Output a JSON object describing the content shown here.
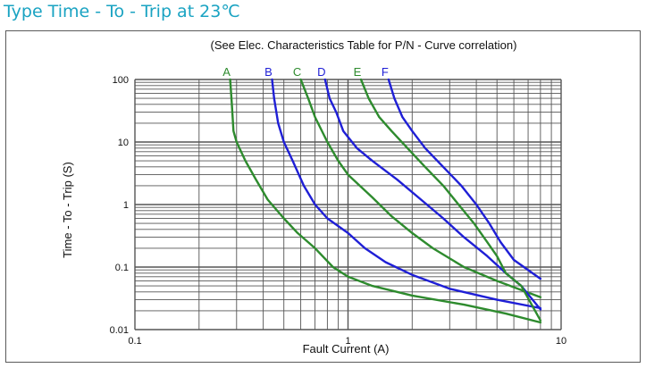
{
  "title": "Type Time - To - Trip at 23℃",
  "chart_data": {
    "type": "line",
    "subtitle": "(See Elec. Characteristics Table for P/N - Curve correlation)",
    "xlabel": "Fault Current (A)",
    "ylabel": "Time - To - Trip (S)",
    "xscale": "log",
    "yscale": "log",
    "xlim": [
      0.1,
      10
    ],
    "ylim": [
      0.01,
      100
    ],
    "grid": true,
    "xticks": [
      0.1,
      1,
      10
    ],
    "xtick_labels": [
      "0.1",
      "1",
      "10"
    ],
    "yticks": [
      0.01,
      0.1,
      1,
      10,
      100
    ],
    "ytick_labels": [
      "0.01",
      "0.1",
      "1",
      "10",
      "100"
    ],
    "colors": {
      "green": "#2e8b2e",
      "blue": "#1f1fd6",
      "grid": "#555555"
    },
    "series": [
      {
        "name": "A",
        "color": "#2e8b2e",
        "points": [
          [
            0.28,
            100
          ],
          [
            0.285,
            40
          ],
          [
            0.29,
            15
          ],
          [
            0.3,
            10
          ],
          [
            0.33,
            5
          ],
          [
            0.37,
            2.5
          ],
          [
            0.42,
            1.2
          ],
          [
            0.5,
            0.6
          ],
          [
            0.58,
            0.35
          ],
          [
            0.7,
            0.2
          ],
          [
            0.85,
            0.1
          ],
          [
            1.0,
            0.07
          ],
          [
            1.3,
            0.05
          ],
          [
            2,
            0.035
          ],
          [
            3.5,
            0.025
          ],
          [
            5.5,
            0.018
          ],
          [
            8,
            0.013
          ]
        ]
      },
      {
        "name": "B",
        "color": "#1f1fd6",
        "points": [
          [
            0.44,
            100
          ],
          [
            0.45,
            50
          ],
          [
            0.47,
            20
          ],
          [
            0.5,
            10
          ],
          [
            0.55,
            5
          ],
          [
            0.62,
            2
          ],
          [
            0.7,
            1
          ],
          [
            0.8,
            0.6
          ],
          [
            1.0,
            0.35
          ],
          [
            1.2,
            0.2
          ],
          [
            1.5,
            0.12
          ],
          [
            2,
            0.075
          ],
          [
            3,
            0.045
          ],
          [
            5,
            0.03
          ],
          [
            8,
            0.022
          ]
        ]
      },
      {
        "name": "C",
        "color": "#2e8b2e",
        "points": [
          [
            0.6,
            100
          ],
          [
            0.65,
            50
          ],
          [
            0.7,
            25
          ],
          [
            0.8,
            10
          ],
          [
            0.9,
            5
          ],
          [
            1.0,
            3
          ],
          [
            1.3,
            1.3
          ],
          [
            1.6,
            0.65
          ],
          [
            2,
            0.35
          ],
          [
            2.5,
            0.2
          ],
          [
            3.5,
            0.1
          ],
          [
            5,
            0.06
          ],
          [
            8,
            0.033
          ]
        ]
      },
      {
        "name": "D",
        "color": "#1f1fd6",
        "points": [
          [
            0.78,
            100
          ],
          [
            0.82,
            50
          ],
          [
            0.88,
            30
          ],
          [
            0.95,
            15
          ],
          [
            1.1,
            8
          ],
          [
            1.3,
            5
          ],
          [
            1.7,
            2.5
          ],
          [
            2.2,
            1.2
          ],
          [
            2.8,
            0.6
          ],
          [
            3.5,
            0.3
          ],
          [
            4.5,
            0.15
          ],
          [
            5.5,
            0.08
          ],
          [
            6.5,
            0.05
          ],
          [
            8,
            0.021
          ]
        ]
      },
      {
        "name": "E",
        "color": "#2e8b2e",
        "points": [
          [
            1.15,
            100
          ],
          [
            1.25,
            50
          ],
          [
            1.4,
            25
          ],
          [
            1.6,
            15
          ],
          [
            1.9,
            8
          ],
          [
            2.3,
            4
          ],
          [
            2.8,
            2
          ],
          [
            3.3,
            1
          ],
          [
            3.9,
            0.5
          ],
          [
            4.5,
            0.25
          ],
          [
            5,
            0.15
          ],
          [
            5.5,
            0.08
          ],
          [
            6.5,
            0.05
          ],
          [
            8,
            0.014
          ]
        ]
      },
      {
        "name": "F",
        "color": "#1f1fd6",
        "points": [
          [
            1.55,
            100
          ],
          [
            1.65,
            50
          ],
          [
            1.8,
            25
          ],
          [
            2,
            15
          ],
          [
            2.3,
            8
          ],
          [
            2.8,
            4
          ],
          [
            3.4,
            2
          ],
          [
            4,
            1
          ],
          [
            4.6,
            0.5
          ],
          [
            5.2,
            0.25
          ],
          [
            6,
            0.13
          ],
          [
            8,
            0.065
          ]
        ]
      }
    ]
  }
}
